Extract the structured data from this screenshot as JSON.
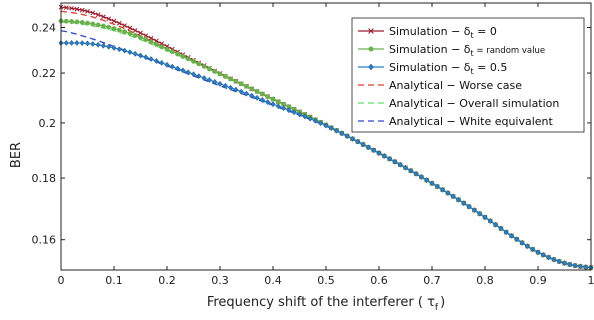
{
  "chart_data": {
    "type": "line",
    "title": "",
    "xlabel": "Frequency shift of the interferer ( τ",
    "xlabel_sub": "f",
    "xlabel_close": ")",
    "ylabel": "BER",
    "xlim": [
      0,
      1
    ],
    "ylim": [
      0.151,
      0.2515
    ],
    "scale": "log-y",
    "grid": false,
    "legend_position": "top-right",
    "xticks": [
      0,
      0.1,
      0.2,
      0.3,
      0.4,
      0.5,
      0.6,
      0.7,
      0.8,
      0.9,
      1
    ],
    "xtick_labels": [
      "0",
      "0.1",
      "0.2",
      "0.3",
      "0.4",
      "0.5",
      "0.6",
      "0.7",
      "0.8",
      "0.9",
      "1"
    ],
    "yticks": [
      0.16,
      0.18,
      0.2,
      0.22,
      0.24
    ],
    "ytick_labels": [
      "0.16",
      "0.18",
      "0.2",
      "0.22",
      "0.24"
    ],
    "x": [
      0,
      0.05,
      0.1,
      0.15,
      0.2,
      0.25,
      0.3,
      0.35,
      0.4,
      0.45,
      0.5,
      0.55,
      0.6,
      0.65,
      0.7,
      0.75,
      0.8,
      0.85,
      0.9,
      0.95,
      1.0
    ],
    "series": [
      {
        "name": "Simulation − δ",
        "name_sub": "t",
        "name_tail": " = 0",
        "tail_small": false,
        "color": "#9b1f2e",
        "style": "solid",
        "marker": "x",
        "values": [
          0.2495,
          0.2475,
          0.243,
          0.2375,
          0.2315,
          0.2255,
          0.2198,
          0.2145,
          0.2093,
          0.2043,
          0.1992,
          0.194,
          0.1888,
          0.1836,
          0.1782,
          0.1727,
          0.167,
          0.1612,
          0.1562,
          0.153,
          0.1517
        ]
      },
      {
        "name": "Simulation − δ",
        "name_sub": "t",
        "name_tail": " = random value",
        "tail_small": true,
        "color": "#6ab04c",
        "style": "solid",
        "marker": "o",
        "values": [
          0.243,
          0.242,
          0.2395,
          0.2355,
          0.2302,
          0.225,
          0.2196,
          0.2145,
          0.2093,
          0.2043,
          0.1992,
          0.194,
          0.1888,
          0.1836,
          0.1782,
          0.1727,
          0.167,
          0.1612,
          0.1562,
          0.153,
          0.1517
        ]
      },
      {
        "name": "Simulation − δ",
        "name_sub": "t",
        "name_tail": " = 0.5",
        "tail_small": false,
        "color": "#2b7fc4",
        "style": "solid",
        "marker": "diamond",
        "values": [
          0.233,
          0.2328,
          0.2308,
          0.2275,
          0.2235,
          0.2195,
          0.2155,
          0.2115,
          0.2073,
          0.2033,
          0.199,
          0.194,
          0.1888,
          0.1836,
          0.1782,
          0.1727,
          0.167,
          0.1612,
          0.1562,
          0.153,
          0.1517
        ]
      },
      {
        "name": "Analytical − Worse case",
        "color": "#e03a2f",
        "style": "dashed",
        "marker": "none",
        "values": [
          0.2475,
          0.2455,
          0.2415,
          0.2362,
          0.2305,
          0.225,
          0.2195,
          0.2143,
          0.2092,
          0.2042,
          0.1991,
          0.194,
          0.1888,
          0.1836,
          0.1782,
          0.1727,
          0.167,
          0.1612,
          0.1562,
          0.153,
          0.1517
        ]
      },
      {
        "name": "Analytical − Overall simulation",
        "color": "#5fe06a",
        "style": "dashed",
        "marker": "none",
        "values": [
          0.2425,
          0.2412,
          0.2385,
          0.2345,
          0.2296,
          0.2247,
          0.2195,
          0.2143,
          0.2092,
          0.2042,
          0.1991,
          0.194,
          0.1888,
          0.1836,
          0.1782,
          0.1727,
          0.167,
          0.1612,
          0.1562,
          0.153,
          0.1517
        ]
      },
      {
        "name": "Analytical − White equivalent",
        "color": "#2d46c8",
        "style": "dashed",
        "marker": "none",
        "values": [
          0.2385,
          0.2355,
          0.2315,
          0.2272,
          0.223,
          0.2188,
          0.2147,
          0.2108,
          0.2068,
          0.203,
          0.1988,
          0.194,
          0.1888,
          0.1836,
          0.1782,
          0.1727,
          0.167,
          0.1612,
          0.1562,
          0.153,
          0.1517
        ]
      }
    ]
  }
}
